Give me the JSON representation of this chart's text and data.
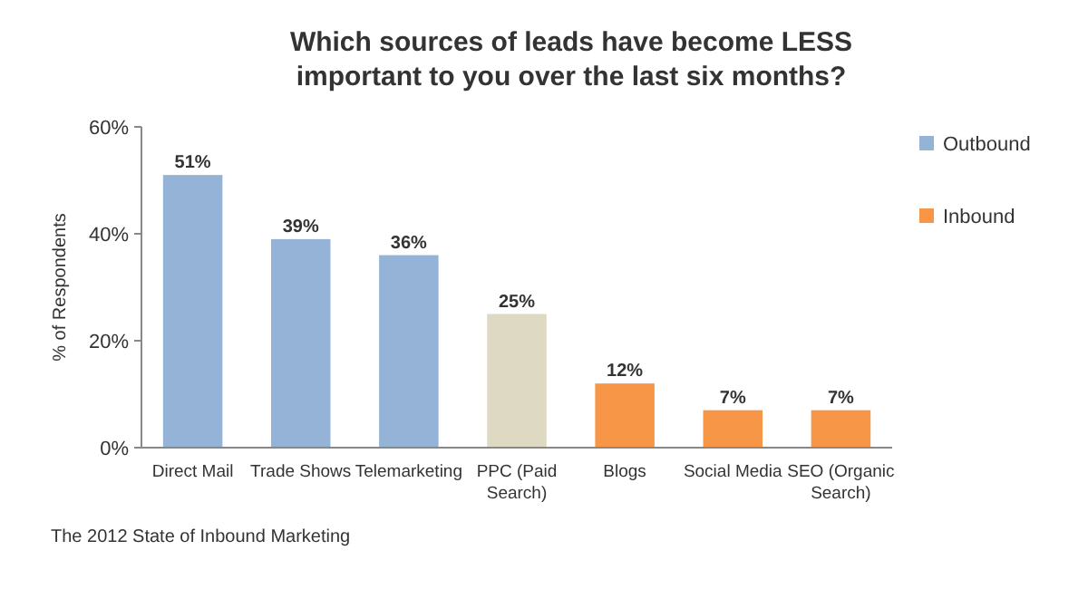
{
  "chart_data": {
    "type": "bar",
    "title": "Which sources of leads have become LESS important to you over the last six months?",
    "ylabel": "% of Respondents",
    "categories": [
      "Direct Mail",
      "Trade Shows",
      "Telemarketing",
      "PPC (Paid Search)",
      "Blogs",
      "Social Media",
      "SEO (Organic Search)"
    ],
    "series": [
      {
        "name": "Outbound",
        "color": "#95b3d7",
        "values": [
          51,
          39,
          36,
          null,
          null,
          null,
          null
        ],
        "value_labels": [
          "51%",
          "39%",
          "36%",
          null,
          null,
          null,
          null
        ]
      },
      {
        "color": "#ddd9c3",
        "values": [
          null,
          null,
          null,
          25,
          null,
          null,
          null
        ],
        "value_labels": [
          null,
          null,
          null,
          "25%",
          null,
          null,
          null
        ]
      },
      {
        "name": "Inbound",
        "color": "#f79646",
        "values": [
          null,
          null,
          null,
          null,
          12,
          7,
          7
        ],
        "value_labels": [
          null,
          null,
          null,
          null,
          "12%",
          "7%",
          "7%"
        ]
      }
    ],
    "ylim": [
      0,
      60
    ],
    "yticks": [
      {
        "value": 0,
        "label": "0%"
      },
      {
        "value": 20,
        "label": "20%"
      },
      {
        "value": 40,
        "label": "40%"
      },
      {
        "value": 60,
        "label": "60%"
      }
    ],
    "legend": "top right",
    "annotations": [
      "The 2012 State of Inbound Marketing"
    ]
  }
}
